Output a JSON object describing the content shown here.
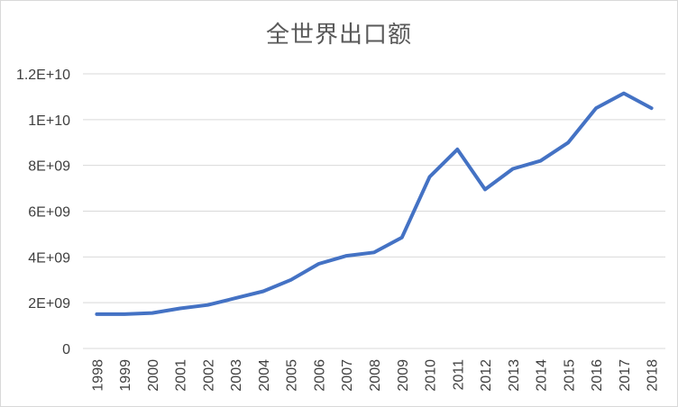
{
  "chart_data": {
    "type": "line",
    "title": "全世界出口额",
    "xlabel": "",
    "ylabel": "",
    "x": [
      "1998",
      "1999",
      "2000",
      "2001",
      "2002",
      "2003",
      "2004",
      "2005",
      "2006",
      "2007",
      "2008",
      "2009",
      "2010",
      "2011",
      "2012",
      "2013",
      "2014",
      "2015",
      "2016",
      "2017",
      "2018"
    ],
    "series": [
      {
        "values": [
          1500000000,
          1500000000,
          1550000000,
          1750000000,
          1900000000,
          2200000000,
          2500000000,
          3000000000,
          3700000000,
          4050000000,
          4200000000,
          4850000000,
          7500000000,
          8700000000,
          6950000000,
          7850000000,
          8200000000,
          9000000000,
          10500000000,
          11150000000,
          10500000000
        ]
      }
    ],
    "ylim": [
      0,
      12000000000
    ],
    "yticks": [
      {
        "value": 0,
        "label": "0"
      },
      {
        "value": 2000000000,
        "label": "2E+09"
      },
      {
        "value": 4000000000,
        "label": "4E+09"
      },
      {
        "value": 6000000000,
        "label": "6E+09"
      },
      {
        "value": 8000000000,
        "label": "8E+09"
      },
      {
        "value": 10000000000,
        "label": "1E+10"
      },
      {
        "value": 12000000000,
        "label": "1.2E+10"
      }
    ],
    "grid": true,
    "legend": "none",
    "line_color": "#4472c4",
    "grid_color": "#d9d9d9"
  }
}
